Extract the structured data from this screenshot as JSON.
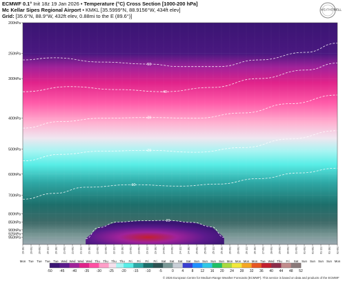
{
  "header": {
    "line1_bold": "ECMWF 0.1°",
    "line1_rest": " Init 18z 19 Jan 2026 • ",
    "line1_bold2": "Temperature (°C) Cross Section [1000-200 hPa]",
    "line2_bold": "Mc Kellar Sipes Regional Airport",
    "line2_rest": " • KMKL [35.5999°N, 88.9156°W, 434ft elev]",
    "line3_bold": "Grid:",
    "line3_rest": " [35.6°N, 88.9°W, 432ft elev, 0.88mi to the E (89.6°)]"
  },
  "logo": {
    "text1": "WEATHER",
    "text2": "BELL"
  },
  "footer": "© 2026 European Centre for Medium-Range Weather Forecasts (ECMWF). This service is based on data and products of the ECMWF",
  "chart_data": {
    "type": "heatmap",
    "title": "Temperature (°C) Cross Section [1000-200 hPa]",
    "y_axis": {
      "label": "",
      "scale": "log",
      "range_hPa": [
        200,
        1000
      ],
      "tick_labels": [
        "200hPa",
        "250hPa",
        "300hPa",
        "400hPa",
        "500hPa",
        "600hPa",
        "700hPa",
        "800hPa",
        "850hPa",
        "900hPa",
        "925hPa",
        "950hPa"
      ],
      "tick_values": [
        200,
        250,
        300,
        400,
        500,
        600,
        700,
        800,
        850,
        900,
        925,
        950
      ]
    },
    "x_axis": {
      "day_labels": [
        "Mon",
        "Tue",
        "Tue",
        "Tue",
        "Tue",
        "Wed",
        "Wed",
        "Wed",
        "Wed",
        "Thu",
        "Thu",
        "Thu",
        "Thu",
        "Fri",
        "Fri",
        "Fri",
        "Fri",
        "Sat",
        "Sat",
        "Sat",
        "Sat",
        "Sun",
        "Sun",
        "Sun",
        "Sun",
        "Mon",
        "Mon",
        "Mon",
        "Mon",
        "Tue",
        "Wed",
        "Thu",
        "Fri",
        "Sat",
        "Sun",
        "Sun",
        "Sun",
        "Sun",
        "Mon"
      ],
      "time_labels": [
        "19-18z",
        "20-00z",
        "20-06z",
        "20-12z",
        "20-18z",
        "21-00z",
        "21-06z",
        "21-12z",
        "21-18z",
        "22-00z",
        "22-06z",
        "22-12z",
        "22-18z",
        "23-00z",
        "23-06z",
        "23-12z",
        "23-18z",
        "24-00z",
        "24-06z",
        "24-12z",
        "24-18z",
        "25-00z",
        "25-06z",
        "25-12z",
        "25-18z",
        "26-00z",
        "26-06z",
        "26-12z",
        "26-18z",
        "27-00z",
        "28-00z",
        "29-00z",
        "30-00z",
        "31-00z",
        "01-00z",
        "01-06z",
        "01-12z",
        "01-18z",
        "02-00z"
      ]
    },
    "isotherms": [
      {
        "label": "-50",
        "x_frac": [
          0,
          0.1,
          0.25,
          0.4,
          0.5,
          0.62,
          0.75,
          0.9,
          1.0
        ],
        "pressure_hPa": [
          262,
          258,
          266,
          270,
          275,
          275,
          262,
          248,
          232
        ]
      },
      {
        "label": "-40",
        "x_frac": [
          0,
          0.15,
          0.3,
          0.45,
          0.6,
          0.75,
          0.9,
          1.0
        ],
        "pressure_hPa": [
          330,
          318,
          325,
          330,
          320,
          300,
          282,
          268
        ]
      },
      {
        "label": "-30",
        "x_frac": [
          0,
          0.12,
          0.25,
          0.4,
          0.55,
          0.7,
          0.85,
          1.0
        ],
        "pressure_hPa": [
          430,
          410,
          400,
          398,
          400,
          385,
          360,
          338
        ]
      },
      {
        "label": "-20",
        "x_frac": [
          0,
          0.12,
          0.25,
          0.4,
          0.55,
          0.7,
          0.85,
          1.0
        ],
        "pressure_hPa": [
          545,
          520,
          508,
          505,
          512,
          495,
          465,
          438
        ]
      },
      {
        "label": "-10",
        "x_frac": [
          0,
          0.1,
          0.2,
          0.35,
          0.5,
          0.62,
          0.75,
          0.88,
          1.0
        ],
        "pressure_hPa": [
          720,
          690,
          660,
          648,
          655,
          645,
          620,
          595,
          575
        ]
      },
      {
        "label": "-20",
        "x_frac": [
          0.2,
          0.24,
          0.3,
          0.38,
          0.46,
          0.54,
          0.6,
          0.64
        ],
        "pressure_hPa": [
          960,
          885,
          850,
          842,
          840,
          852,
          880,
          950
        ]
      }
    ],
    "colorbar": {
      "unit": "°C",
      "tick_labels": [
        "-50",
        "-45",
        "-40",
        "-35",
        "-30",
        "-25",
        "-20",
        "-15",
        "-10",
        "-5",
        "0",
        "4",
        "8",
        "12",
        "16",
        "20",
        "24",
        "28",
        "32",
        "36",
        "40",
        "44",
        "48",
        "52"
      ],
      "tick_values": [
        -50,
        -45,
        -40,
        -35,
        -30,
        -25,
        -20,
        -15,
        -10,
        -5,
        0,
        4,
        8,
        12,
        16,
        20,
        24,
        28,
        32,
        36,
        40,
        44,
        48,
        52
      ],
      "color_stops": [
        {
          "v": -50,
          "c": "#3a1573"
        },
        {
          "v": -46,
          "c": "#5b1a8c"
        },
        {
          "v": -42,
          "c": "#a0229a"
        },
        {
          "v": -38,
          "c": "#e0238a"
        },
        {
          "v": -34,
          "c": "#ff4fa3"
        },
        {
          "v": -30,
          "c": "#ff9ec8"
        },
        {
          "v": -26,
          "c": "#f5e0ec"
        },
        {
          "v": -23,
          "c": "#a6f4f2"
        },
        {
          "v": -20,
          "c": "#58ede6"
        },
        {
          "v": -16,
          "c": "#2fa9a6"
        },
        {
          "v": -12,
          "c": "#1d6f6b"
        },
        {
          "v": -8,
          "c": "#2d5252"
        },
        {
          "v": -4,
          "c": "#7a9896"
        },
        {
          "v": 0,
          "c": "#c9cfd7"
        },
        {
          "v": 4,
          "c": "#3a3fd1"
        },
        {
          "v": 8,
          "c": "#1e90ff"
        },
        {
          "v": 12,
          "c": "#30c7e6"
        },
        {
          "v": 16,
          "c": "#1fbf66"
        },
        {
          "v": 20,
          "c": "#a9d941"
        },
        {
          "v": 24,
          "c": "#f2e83c"
        },
        {
          "v": 28,
          "c": "#f5a623"
        },
        {
          "v": 32,
          "c": "#e65722"
        },
        {
          "v": 36,
          "c": "#c21f2e"
        },
        {
          "v": 40,
          "c": "#8c2d4a"
        },
        {
          "v": 44,
          "c": "#c18b8b"
        },
        {
          "v": 48,
          "c": "#8a7a7a"
        },
        {
          "v": 52,
          "c": "#1a9e8e"
        }
      ]
    }
  }
}
